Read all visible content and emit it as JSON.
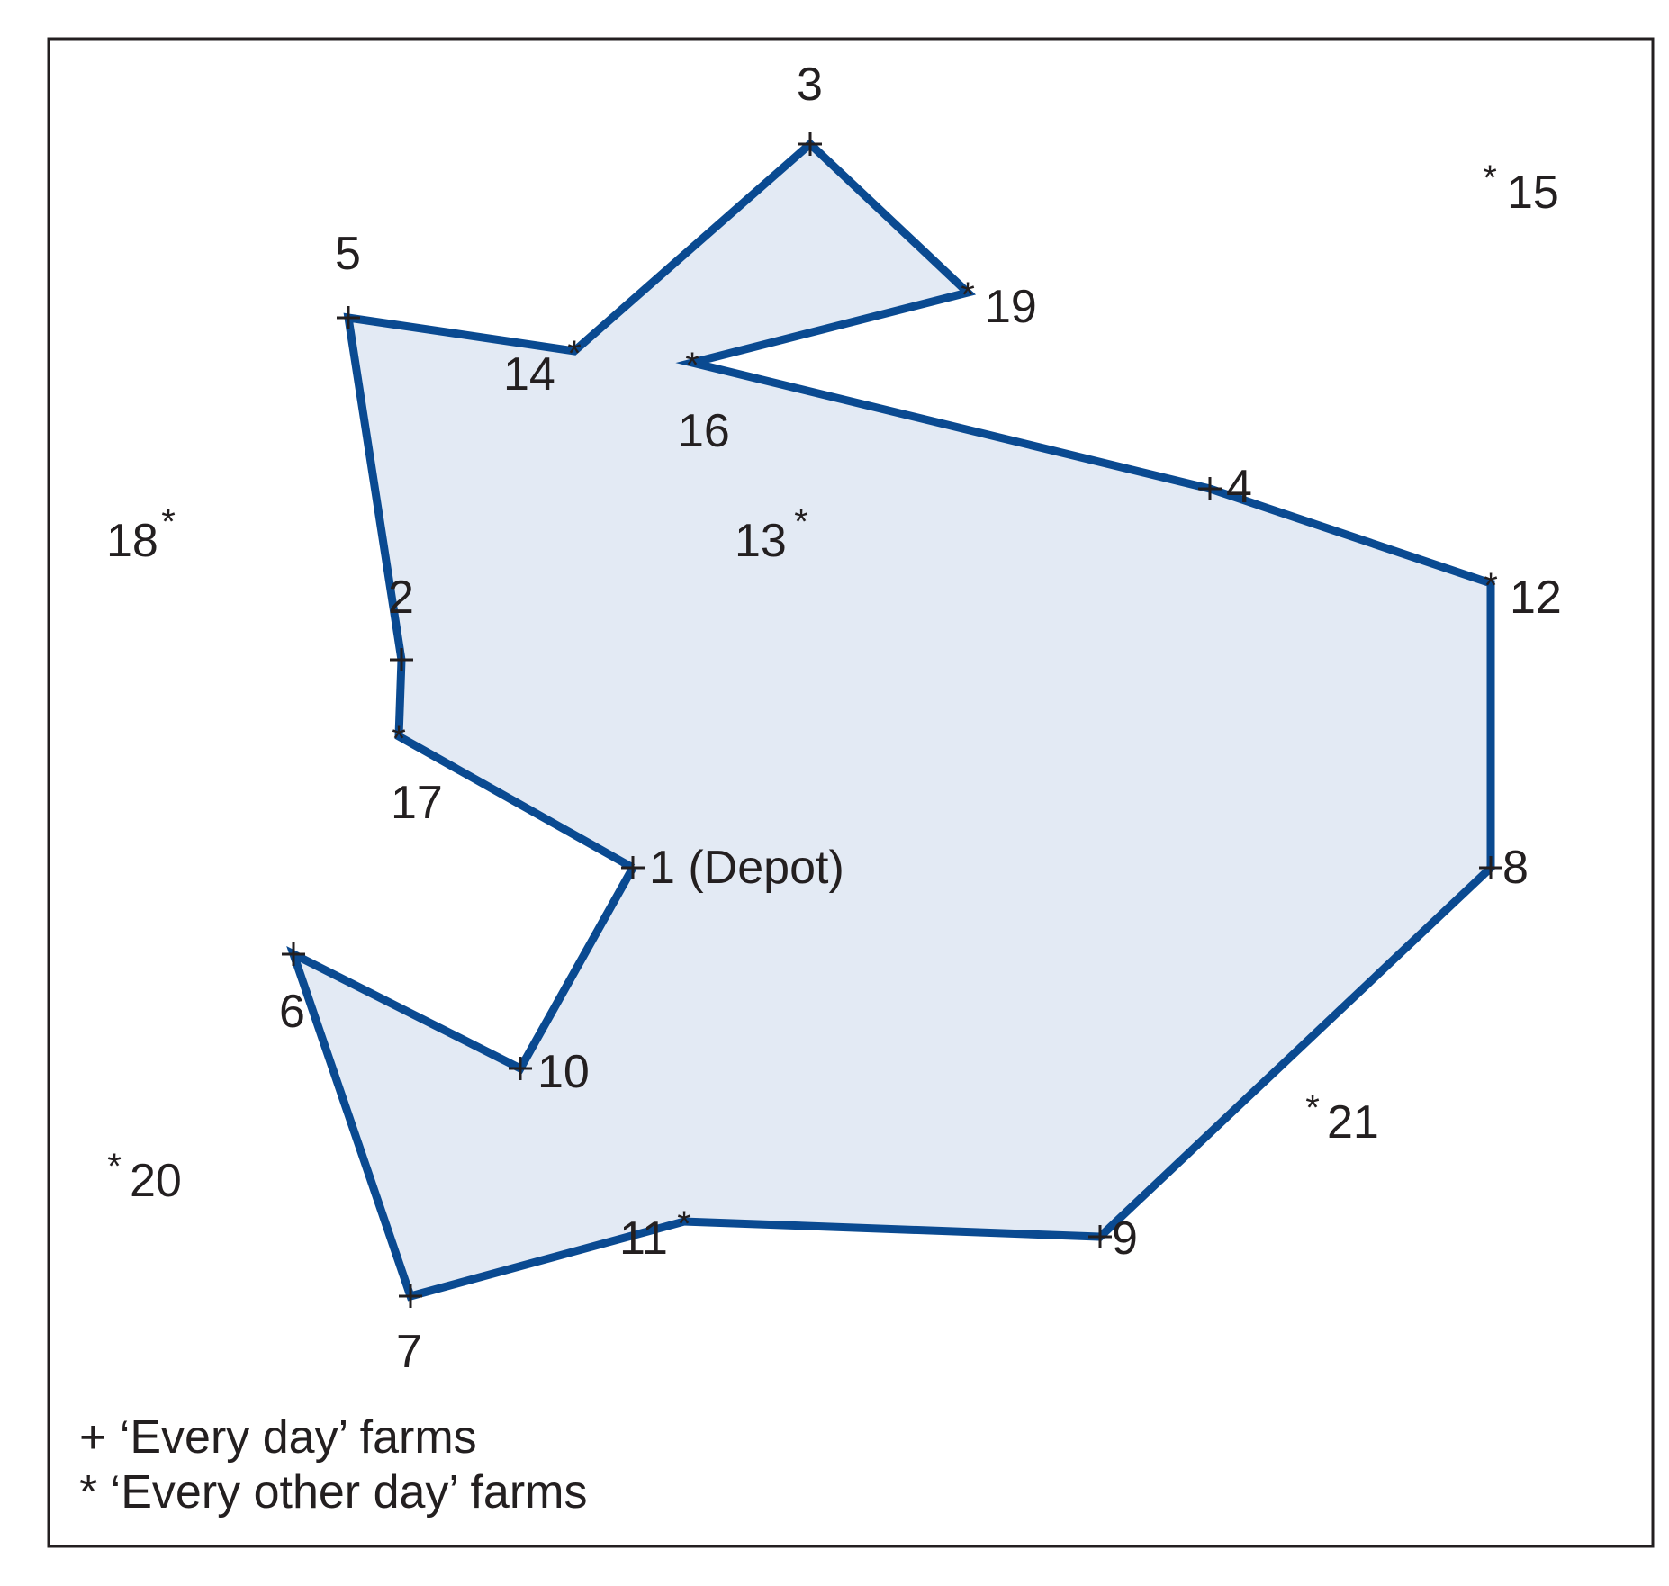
{
  "route": {
    "stroke_color": "#0a4a91",
    "fill_color": "#e3eaf4"
  },
  "farms": [
    {
      "id": "1",
      "label": "1 (Depot)",
      "marker": "+"
    },
    {
      "id": "2",
      "label": "2",
      "marker": "+"
    },
    {
      "id": "3",
      "label": "3",
      "marker": "+"
    },
    {
      "id": "4",
      "label": "4",
      "marker": "+"
    },
    {
      "id": "5",
      "label": "5",
      "marker": "+"
    },
    {
      "id": "6",
      "label": "6",
      "marker": "+"
    },
    {
      "id": "7",
      "label": "7",
      "marker": "+"
    },
    {
      "id": "8",
      "label": "8",
      "marker": "+"
    },
    {
      "id": "9",
      "label": "9",
      "marker": "+"
    },
    {
      "id": "10",
      "label": "10",
      "marker": "+"
    },
    {
      "id": "11",
      "label": "11",
      "marker": "*"
    },
    {
      "id": "12",
      "label": "12",
      "marker": "*"
    },
    {
      "id": "13",
      "label": "13",
      "marker": "*"
    },
    {
      "id": "14",
      "label": "14",
      "marker": "*"
    },
    {
      "id": "15",
      "label": "15",
      "marker": "*"
    },
    {
      "id": "16",
      "label": "16",
      "marker": "*"
    },
    {
      "id": "17",
      "label": "17",
      "marker": "*"
    },
    {
      "id": "18",
      "label": "18",
      "marker": "*"
    },
    {
      "id": "19",
      "label": "19",
      "marker": "*"
    },
    {
      "id": "20",
      "label": "20",
      "marker": "*"
    },
    {
      "id": "21",
      "label": "21",
      "marker": "*"
    }
  ],
  "route_order": [
    "1",
    "17",
    "2",
    "5",
    "14",
    "3",
    "19",
    "16",
    "4",
    "12",
    "8",
    "9",
    "11",
    "7",
    "6",
    "10",
    "1"
  ],
  "legend": {
    "every_day": "+ ‘Every day’ farms",
    "every_other_day": "* ‘Every other day’ farms"
  },
  "icons": {
    "every_day_marker": "plus-icon",
    "every_other_day_marker": "asterisk-icon"
  }
}
